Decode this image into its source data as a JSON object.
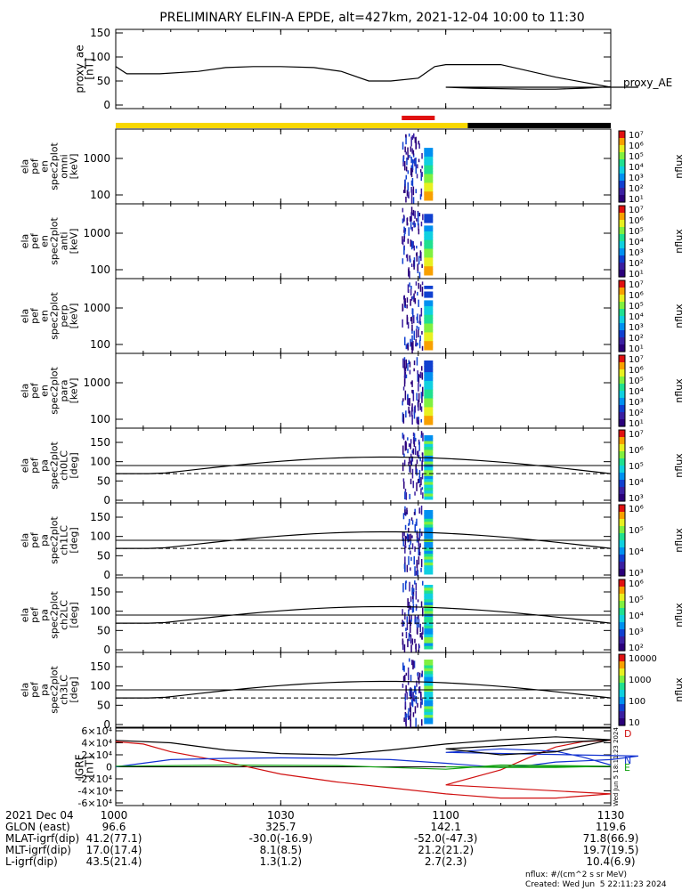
{
  "title": "PRELIMINARY ELFIN-A EPDE, alt=427km, 2021-12-04 10:00 to 11:30",
  "chart_data": [
    {
      "type": "line",
      "panel": "proxy_ae",
      "ylabel": [
        "proxy_ae",
        "[nT]"
      ],
      "yticks": [
        "0",
        "50",
        "100",
        "150"
      ],
      "ylim": [
        0,
        150
      ],
      "series": [
        {
          "name": "proxy_AE",
          "x": [
            1000,
            1002,
            1008,
            1015,
            1020,
            1025,
            1030,
            1036,
            1041,
            1046,
            1050,
            1055,
            1058,
            1060,
            1062,
            1070,
            1080,
            1090,
            1095,
            1100,
            1105,
            1110,
            1115,
            1120,
            1125,
            1130
          ],
          "y": [
            80,
            65,
            65,
            70,
            78,
            80,
            80,
            78,
            70,
            50,
            50,
            56,
            80,
            84,
            84,
            84,
            58,
            37,
            37,
            37,
            35,
            34,
            33,
            33,
            35,
            38
          ]
        }
      ]
    },
    {
      "type": "heatmap",
      "panel": "omni",
      "ylabel": [
        "ela",
        "pef",
        "en",
        "spec2plot",
        "omni",
        "[keV]"
      ],
      "yticks": [
        "100",
        "1000"
      ],
      "zlabel": "nflux",
      "zticks": [
        "10¹",
        "10²",
        "10³",
        "10⁴",
        "10⁵",
        "10⁶",
        "10⁷"
      ]
    },
    {
      "type": "heatmap",
      "panel": "anti",
      "ylabel": [
        "ela",
        "pef",
        "en",
        "spec2plot",
        "anti",
        "[keV]"
      ],
      "yticks": [
        "100",
        "1000"
      ],
      "zlabel": "nflux",
      "zticks": [
        "10¹",
        "10²",
        "10³",
        "10⁴",
        "10⁵",
        "10⁶",
        "10⁷"
      ]
    },
    {
      "type": "heatmap",
      "panel": "perp",
      "ylabel": [
        "ela",
        "pef",
        "en",
        "spec2plot",
        "perp",
        "[keV]"
      ],
      "yticks": [
        "100",
        "1000"
      ],
      "zlabel": "nflux",
      "zticks": [
        "10¹",
        "10²",
        "10³",
        "10⁴",
        "10⁵",
        "10⁶",
        "10⁷"
      ]
    },
    {
      "type": "heatmap",
      "panel": "para",
      "ylabel": [
        "ela",
        "pef",
        "en",
        "spec2plot",
        "para",
        "[keV]"
      ],
      "yticks": [
        "100",
        "1000"
      ],
      "zlabel": "nflux",
      "zticks": [
        "10¹",
        "10²",
        "10³",
        "10⁴",
        "10⁵",
        "10⁶",
        "10⁷"
      ]
    },
    {
      "type": "heatmap",
      "panel": "ch0LC",
      "ylabel": [
        "ela",
        "pef",
        "pa",
        "spec2plot",
        "ch0LC",
        "[deg]"
      ],
      "yticks": [
        "0",
        "50",
        "100",
        "150"
      ],
      "ylim": [
        0,
        180
      ],
      "zlabel": "nflux",
      "zticks": [
        "10³",
        "10⁴",
        "10⁵",
        "10⁶",
        "10⁷"
      ]
    },
    {
      "type": "heatmap",
      "panel": "ch1LC",
      "ylabel": [
        "ela",
        "pef",
        "pa",
        "spec2plot",
        "ch1LC",
        "[deg]"
      ],
      "yticks": [
        "0",
        "50",
        "100",
        "150"
      ],
      "ylim": [
        0,
        180
      ],
      "zlabel": "nflux",
      "zticks": [
        "10³",
        "10⁴",
        "10⁵",
        "10⁶"
      ]
    },
    {
      "type": "heatmap",
      "panel": "ch2LC",
      "ylabel": [
        "ela",
        "pef",
        "pa",
        "spec2plot",
        "ch2LC",
        "[deg]"
      ],
      "yticks": [
        "0",
        "50",
        "100",
        "150"
      ],
      "ylim": [
        0,
        180
      ],
      "zlabel": "nflux",
      "zticks": [
        "10²",
        "10³",
        "10⁴",
        "10⁵",
        "10⁶"
      ]
    },
    {
      "type": "heatmap",
      "panel": "ch3LC",
      "ylabel": [
        "ela",
        "pef",
        "pa",
        "spec2plot",
        "ch3LC",
        "[deg]"
      ],
      "yticks": [
        "0",
        "50",
        "100",
        "150"
      ],
      "ylim": [
        0,
        180
      ],
      "zlabel": "nflux",
      "zticks": [
        "10",
        "100",
        "1000",
        "10000"
      ]
    },
    {
      "type": "line",
      "panel": "IGRF",
      "ylabel": [
        "IGRF",
        "[nT]"
      ],
      "yticks": [
        "-6×10⁴",
        "-4×10⁴",
        "-2×10⁴",
        "0",
        "2×10⁴",
        "4×10⁴",
        "6×10⁴"
      ],
      "ylim": [
        -60000,
        60000
      ],
      "legend": [
        "D",
        "N",
        "E"
      ],
      "stamp": "Wed Jun 5 18:11:23 2024",
      "series": [
        {
          "name": "D",
          "x": [
            1000,
            1005,
            1010,
            1020,
            1030,
            1040,
            1050,
            1060,
            1070,
            1080,
            1090,
            1100,
            1110,
            1115,
            1120,
            1125,
            1130
          ],
          "y": [
            42000,
            38000,
            25000,
            8000,
            -12000,
            -25000,
            -35000,
            -45000,
            -52000,
            -52000,
            -45000,
            -30000,
            -5000,
            15000,
            33000,
            42000,
            44000
          ]
        },
        {
          "name": "N",
          "x": [
            1000,
            1010,
            1020,
            1030,
            1040,
            1050,
            1060,
            1070,
            1075,
            1080,
            1085,
            1090,
            1095,
            1100,
            1110,
            1120,
            1125,
            1130
          ],
          "y": [
            0,
            12000,
            14000,
            15000,
            14000,
            12000,
            6000,
            -1000,
            2000,
            8000,
            10000,
            12000,
            18000,
            24000,
            30000,
            26000,
            16000,
            3000
          ]
        },
        {
          "name": "E",
          "x": [
            1000,
            1020,
            1040,
            1060,
            1070,
            1080,
            1090,
            1100,
            1110,
            1120,
            1130
          ],
          "y": [
            1000,
            3000,
            2000,
            -4000,
            3000,
            2000,
            1000,
            0,
            -1000,
            -1000,
            1000
          ]
        },
        {
          "name": "",
          "x": [
            1000,
            1010,
            1020,
            1030,
            1040,
            1050,
            1060,
            1070,
            1080,
            1090,
            1100,
            1110,
            1120,
            1130
          ],
          "y": [
            44000,
            40000,
            28000,
            22000,
            20000,
            28000,
            38000,
            45000,
            50000,
            45000,
            30000,
            20000,
            25000,
            45000
          ]
        }
      ]
    }
  ],
  "footer": {
    "rows": [
      [
        "2021 Dec 04",
        "1000",
        "1030",
        "1100",
        "1130"
      ],
      [
        "GLON (east)",
        "96.6",
        "325.7",
        "142.1",
        "119.6"
      ],
      [
        "MLAT-igrf(dip)",
        "41.2(77.1)",
        "-30.0(-16.9)",
        "-52.0(-47.3)",
        "71.8(66.9)"
      ],
      [
        "MLT-igrf(dip)",
        "17.0(17.4)",
        "8.1(8.5)",
        "21.2(21.2)",
        "19.7(19.5)"
      ],
      [
        "L-igrf(dip)",
        "43.5(21.4)",
        "1.3(1.2)",
        "2.7(2.3)",
        "10.4(6.9)"
      ]
    ],
    "units_note": "nflux: #/(cm^2 s sr MeV)",
    "created": "Created: Wed Jun  5 22:11:23 2024"
  }
}
